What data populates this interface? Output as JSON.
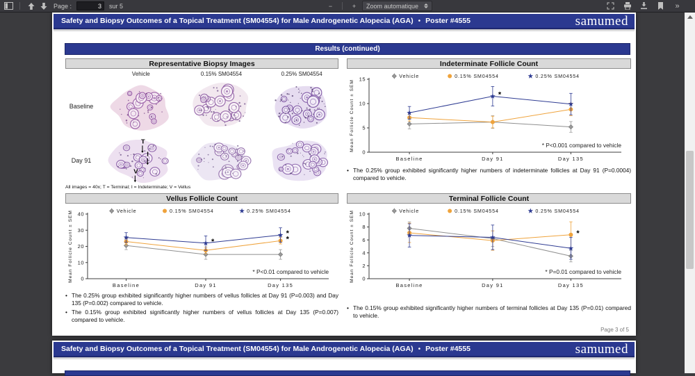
{
  "toolbar": {
    "page_label": "Page :",
    "page_value": "3",
    "page_total": "sur 5",
    "zoom_out": "−",
    "zoom_in": "+",
    "zoom_select": "Zoom automatique",
    "more_icon": "»"
  },
  "poster": {
    "header_title": "Safety and Biopsy Outcomes of a Topical Treatment (SM04554) for Male Androgenetic Alopecia (AGA)",
    "header_separator": "•",
    "header_poster": "Poster #4555",
    "logo": "samumed",
    "results_bar": "Results (continued)",
    "page_footer": "Page 3 of 5"
  },
  "biopsy": {
    "title": "Representative Biopsy Images",
    "col_labels": [
      "Vehicle",
      "0.15% SM04554",
      "0.25% SM04554"
    ],
    "row_labels": [
      "Baseline",
      "Day 91"
    ],
    "caption": "All images = 40x; T = Terminal; I = Indeterminate; V = Vellus",
    "annotations": [
      "T",
      "I",
      "V"
    ]
  },
  "bullets": {
    "indeterminate": [
      "The 0.25% group exhibited significantly higher numbers of indeterminate follicles at Day 91 (P=0.0004) compared to vehicle."
    ],
    "vellus": [
      "The 0.25% group exhibited significantly higher numbers of vellus follicles at Day 91 (P=0.003) and Day 135 (P=0.002) compared to vehicle.",
      "The 0.15% group exhibited significantly higher numbers of vellus follicles at Day 135 (P=0.007) compared to vehicle."
    ],
    "terminal": [
      "The 0.15% group exhibited significantly higher numbers of terminal follicles at Day 135 (P=0.01) compared to vehicle."
    ]
  },
  "colors": {
    "accent_blue": "#2b3990",
    "vehicle": "#8f8f8f",
    "dose_015": "#EFA33C",
    "dose_025": "#2E3B92"
  },
  "chart_data": [
    {
      "id": "indeterminate",
      "type": "line",
      "title": "Indeterminate Follicle Count",
      "categories": [
        "Baseline",
        "Day 91",
        "Day 135"
      ],
      "ylabel": "Mean Follicle Count ± SEM",
      "xlabel": "",
      "ylim": [
        0,
        15
      ],
      "yticks": [
        0,
        5,
        10,
        15
      ],
      "grid": false,
      "legend_position": "top",
      "note": "* P<0.001 compared to vehicle",
      "series": [
        {
          "name": "Vehicle",
          "marker": "diamond",
          "color": "#8f8f8f",
          "values": [
            5.8,
            6.2,
            5.2
          ],
          "errors": [
            1.0,
            1.3,
            1.1
          ],
          "sig": [
            false,
            false,
            false
          ]
        },
        {
          "name": "0.15% SM04554",
          "marker": "circle",
          "color": "#EFA33C",
          "values": [
            7.1,
            6.2,
            8.8
          ],
          "errors": [
            0.7,
            1.2,
            1.3
          ],
          "sig": [
            false,
            false,
            false
          ]
        },
        {
          "name": "0.25% SM04554",
          "marker": "star",
          "color": "#2E3B92",
          "values": [
            8.1,
            11.5,
            9.9
          ],
          "errors": [
            1.3,
            2.0,
            2.2
          ],
          "sig": [
            false,
            true,
            false
          ]
        }
      ]
    },
    {
      "id": "vellus",
      "type": "line",
      "title": "Vellus Follicle Count",
      "categories": [
        "Baseline",
        "Day 91",
        "Day 135"
      ],
      "ylabel": "Mean Follicle Count ± SEM",
      "xlabel": "",
      "ylim": [
        0,
        40
      ],
      "yticks": [
        0,
        10,
        20,
        30,
        40
      ],
      "grid": false,
      "legend_position": "top",
      "note": "* P<0.01 compared to vehicle",
      "series": [
        {
          "name": "Vehicle",
          "marker": "diamond",
          "color": "#8f8f8f",
          "values": [
            20.5,
            15,
            15
          ],
          "errors": [
            2.5,
            3,
            3
          ],
          "sig": [
            false,
            false,
            false
          ]
        },
        {
          "name": "0.15% SM04554",
          "marker": "circle",
          "color": "#EFA33C",
          "values": [
            23,
            17.5,
            23.5
          ],
          "errors": [
            2,
            2,
            2
          ],
          "sig": [
            false,
            false,
            true
          ]
        },
        {
          "name": "0.25% SM04554",
          "marker": "star",
          "color": "#2E3B92",
          "values": [
            25.5,
            22,
            27
          ],
          "errors": [
            3,
            4.5,
            4.5
          ],
          "sig": [
            false,
            true,
            true
          ]
        }
      ]
    },
    {
      "id": "terminal",
      "type": "line",
      "title": "Terminal Follicle Count",
      "categories": [
        "Baseline",
        "Day 91",
        "Day 135"
      ],
      "ylabel": "Mean Follicle Count ± SEM",
      "xlabel": "",
      "ylim": [
        0,
        10
      ],
      "yticks": [
        0,
        2,
        4,
        6,
        8,
        10
      ],
      "grid": false,
      "legend_position": "top",
      "note": "* P=0.01 compared to vehicle",
      "series": [
        {
          "name": "Vehicle",
          "marker": "diamond",
          "color": "#8f8f8f",
          "values": [
            7.8,
            6.2,
            3.5
          ],
          "errors": [
            1.0,
            1.2,
            0.9
          ],
          "sig": [
            false,
            false,
            false
          ]
        },
        {
          "name": "0.15% SM04554",
          "marker": "circle",
          "color": "#EFA33C",
          "values": [
            7.1,
            5.9,
            6.8
          ],
          "errors": [
            1.5,
            1.5,
            2.0
          ],
          "sig": [
            false,
            false,
            true
          ]
        },
        {
          "name": "0.25% SM04554",
          "marker": "star",
          "color": "#2E3B92",
          "values": [
            6.7,
            6.4,
            4.7
          ],
          "errors": [
            1.8,
            1.9,
            1.7
          ],
          "sig": [
            false,
            false,
            false
          ]
        }
      ]
    }
  ]
}
